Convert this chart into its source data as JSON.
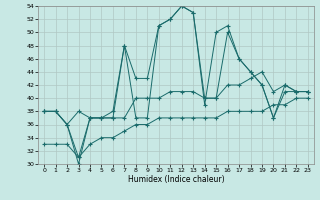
{
  "xlabel": "Humidex (Indice chaleur)",
  "xlim": [
    -0.5,
    23.5
  ],
  "ylim": [
    30,
    54
  ],
  "yticks": [
    30,
    32,
    34,
    36,
    38,
    40,
    42,
    44,
    46,
    48,
    50,
    52,
    54
  ],
  "xticks": [
    0,
    1,
    2,
    3,
    4,
    5,
    6,
    7,
    8,
    9,
    10,
    11,
    12,
    13,
    14,
    15,
    16,
    17,
    18,
    19,
    20,
    21,
    22,
    23
  ],
  "bg_color": "#c8e8e4",
  "grid_color": "#b0c8c4",
  "line_color": "#1a6b6b",
  "series": [
    [
      38,
      38,
      36,
      30,
      37,
      37,
      37,
      48,
      37,
      37,
      51,
      52,
      54,
      53,
      39,
      50,
      51,
      46,
      44,
      42,
      37,
      41,
      41,
      41
    ],
    [
      38,
      38,
      36,
      31,
      37,
      37,
      38,
      48,
      43,
      43,
      51,
      52,
      54,
      53,
      40,
      40,
      50,
      46,
      44,
      42,
      37,
      42,
      41,
      41
    ],
    [
      38,
      38,
      36,
      38,
      37,
      37,
      37,
      37,
      40,
      40,
      40,
      41,
      41,
      41,
      40,
      40,
      42,
      42,
      43,
      44,
      41,
      42,
      41,
      41
    ],
    [
      33,
      33,
      33,
      31,
      33,
      34,
      34,
      35,
      36,
      36,
      37,
      37,
      37,
      37,
      37,
      37,
      38,
      38,
      38,
      38,
      39,
      39,
      40,
      40
    ]
  ]
}
